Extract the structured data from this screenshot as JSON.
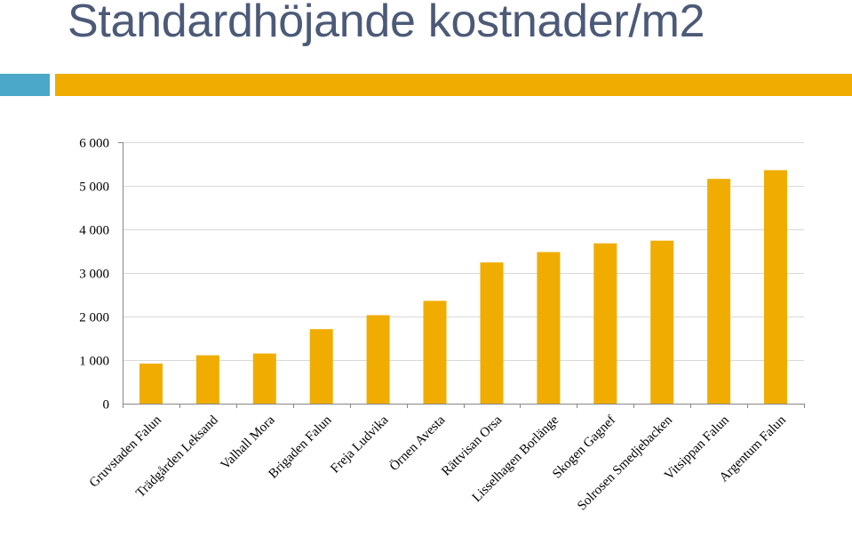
{
  "slide": {
    "title": "Standardhöjande kostnader/m2"
  },
  "colors": {
    "title": "#4c5a78",
    "accent_band": "#4ba8c8",
    "main_band": "#f0ad00",
    "bar": "#f0ad00",
    "grid": "#d9d9d9",
    "axis": "#868686",
    "text": "#000000"
  },
  "chart_data": {
    "type": "bar",
    "title": "",
    "xlabel": "",
    "ylabel": "",
    "ylim": [
      0,
      6000
    ],
    "yticks": [
      0,
      1000,
      2000,
      3000,
      4000,
      5000,
      6000
    ],
    "ytick_labels": [
      "0",
      "1 000",
      "2 000",
      "3 000",
      "4 000",
      "5 000",
      "6 000"
    ],
    "grid": true,
    "legend": "none",
    "categories": [
      "Gruvstaden Falun",
      "Trädgården Leksand",
      "Valhall Mora",
      "Brigaden Falun",
      "Freja Ludvika",
      "Örnen Avesta",
      "Rättvisan Orsa",
      "Lisselhagen Borlänge",
      "Skogen Gagnef",
      "Solrosen Smedjebacken",
      "Vitsippan Falun",
      "Argentum Falun"
    ],
    "values": [
      920,
      1110,
      1150,
      1710,
      2030,
      2360,
      3240,
      3480,
      3680,
      3740,
      5160,
      5360
    ]
  }
}
